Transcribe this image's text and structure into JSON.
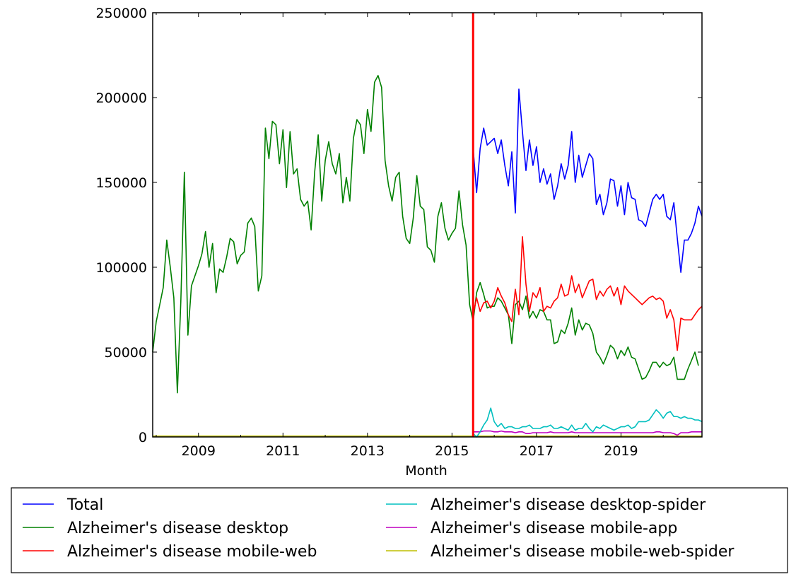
{
  "chart_data": {
    "type": "line",
    "title": "",
    "xlabel": "Month",
    "ylabel": "",
    "ylim": [
      0,
      250000
    ],
    "y_ticks": [
      "0",
      "50000",
      "100000",
      "150000",
      "200000",
      "250000"
    ],
    "y_tick_values": [
      0,
      50000,
      100000,
      150000,
      200000,
      250000
    ],
    "x_range": [
      "2007-12",
      "2020-12"
    ],
    "x_ticks": [
      "2009",
      "2011",
      "2013",
      "2015",
      "2017",
      "2019"
    ],
    "grid": false,
    "legend_placement": "bottom-outside",
    "vline": {
      "x": "2015-07",
      "color": "#ff0000"
    },
    "units_note_multiplier": 1000,
    "series": [
      {
        "name": "Total",
        "color": "#0000ff",
        "start": "2015-07",
        "values": [
          170,
          144,
          170,
          182,
          172,
          174,
          176,
          167,
          175,
          160,
          148,
          168,
          132,
          205,
          180,
          157,
          175,
          160,
          171,
          150,
          158,
          149,
          155,
          140,
          148,
          161,
          152,
          160,
          180,
          150,
          166,
          153,
          160,
          167,
          164,
          137,
          143,
          131,
          138,
          152,
          151,
          136,
          148,
          131,
          150,
          141,
          140,
          128,
          127,
          124,
          132,
          140,
          143,
          140,
          143,
          130,
          128,
          138,
          117,
          97,
          116,
          116,
          120,
          126,
          136,
          130
        ]
      },
      {
        "name": "Alzheimer's disease desktop",
        "color": "#008000",
        "start": "2007-12",
        "values": [
          50,
          68,
          78,
          88,
          116,
          100,
          82,
          26,
          80,
          156,
          60,
          89,
          95,
          101,
          108,
          121,
          100,
          114,
          85,
          99,
          97,
          106,
          117,
          115,
          102,
          107,
          109,
          126,
          129,
          124,
          86,
          95,
          182,
          164,
          186,
          184,
          161,
          181,
          147,
          180,
          155,
          158,
          140,
          136,
          139,
          122,
          156,
          178,
          139,
          163,
          174,
          161,
          155,
          167,
          138,
          153,
          139,
          176,
          187,
          184,
          167,
          193,
          180,
          209,
          213,
          206,
          163,
          148,
          139,
          153,
          156,
          130,
          117,
          114,
          129,
          154,
          136,
          134,
          112,
          110,
          103,
          130,
          138,
          123,
          116,
          120,
          123,
          145,
          125,
          113,
          78,
          68,
          85,
          91,
          84,
          76,
          77,
          77,
          82,
          80,
          76,
          72,
          55,
          78,
          80,
          75,
          83,
          70,
          74,
          70,
          75,
          74,
          69,
          69,
          55,
          56,
          63,
          61,
          67,
          76,
          60,
          69,
          63,
          67,
          66,
          61,
          50,
          47,
          43,
          48,
          54,
          52,
          46,
          51,
          48,
          53,
          47,
          46,
          40,
          34,
          35,
          39,
          44,
          44,
          41,
          44,
          42,
          43,
          47,
          34,
          34,
          34,
          40,
          45,
          50,
          42
        ]
      },
      {
        "name": "Alzheimer's disease mobile-web",
        "color": "#ff0000",
        "start": "2015-07",
        "values": [
          72,
          82,
          74,
          79,
          80,
          76,
          80,
          88,
          83,
          79,
          72,
          68,
          87,
          72,
          118,
          90,
          74,
          85,
          82,
          88,
          74,
          77,
          76,
          80,
          82,
          90,
          83,
          84,
          95,
          85,
          90,
          82,
          87,
          92,
          93,
          81,
          86,
          83,
          87,
          89,
          83,
          88,
          78,
          89,
          86,
          84,
          82,
          80,
          78,
          80,
          82,
          83,
          81,
          82,
          80,
          70,
          75,
          69,
          51,
          70,
          69,
          69,
          69,
          72,
          75,
          77
        ]
      },
      {
        "name": "Alzheimer's disease desktop-spider",
        "color": "#00bfbf",
        "start": "2015-07",
        "values": [
          2,
          0,
          3,
          7,
          10,
          17,
          9,
          6,
          8,
          5,
          6,
          6,
          5,
          5,
          6,
          6,
          7,
          5,
          5,
          5,
          6,
          6,
          7,
          5,
          5,
          6,
          5,
          4,
          7,
          4,
          5,
          5,
          8,
          5,
          3,
          6,
          5,
          7,
          6,
          5,
          4,
          5,
          6,
          6,
          7,
          5,
          6,
          9,
          9,
          9,
          10,
          13,
          16,
          14,
          11,
          14,
          15,
          12,
          12,
          11,
          12,
          11,
          11,
          10,
          10,
          9
        ]
      },
      {
        "name": "Alzheimer's disease mobile-app",
        "color": "#bf00bf",
        "start": "2015-07",
        "values": [
          3,
          3,
          3,
          3.5,
          3.5,
          3.5,
          3,
          3,
          3.5,
          3,
          3,
          3,
          2.5,
          3,
          3,
          2,
          2,
          2.5,
          2.5,
          2.5,
          2.5,
          2.5,
          3,
          2.5,
          2.5,
          2.5,
          2.5,
          2.5,
          3,
          2.5,
          2.5,
          2.5,
          2.5,
          2.5,
          2.5,
          2.5,
          2.5,
          2.5,
          2.5,
          2.5,
          2.5,
          2.5,
          2.5,
          2.5,
          2.5,
          2.5,
          2.5,
          2.5,
          2.5,
          2.5,
          2.5,
          2.5,
          3,
          3,
          2.5,
          2.5,
          2.5,
          2,
          1,
          2.5,
          2.5,
          2.5,
          3,
          3,
          3,
          3
        ]
      },
      {
        "name": "Alzheimer's disease mobile-web-spider",
        "color": "#bfbf00",
        "start": "2007-12",
        "values_constant": 0.5
      }
    ]
  }
}
